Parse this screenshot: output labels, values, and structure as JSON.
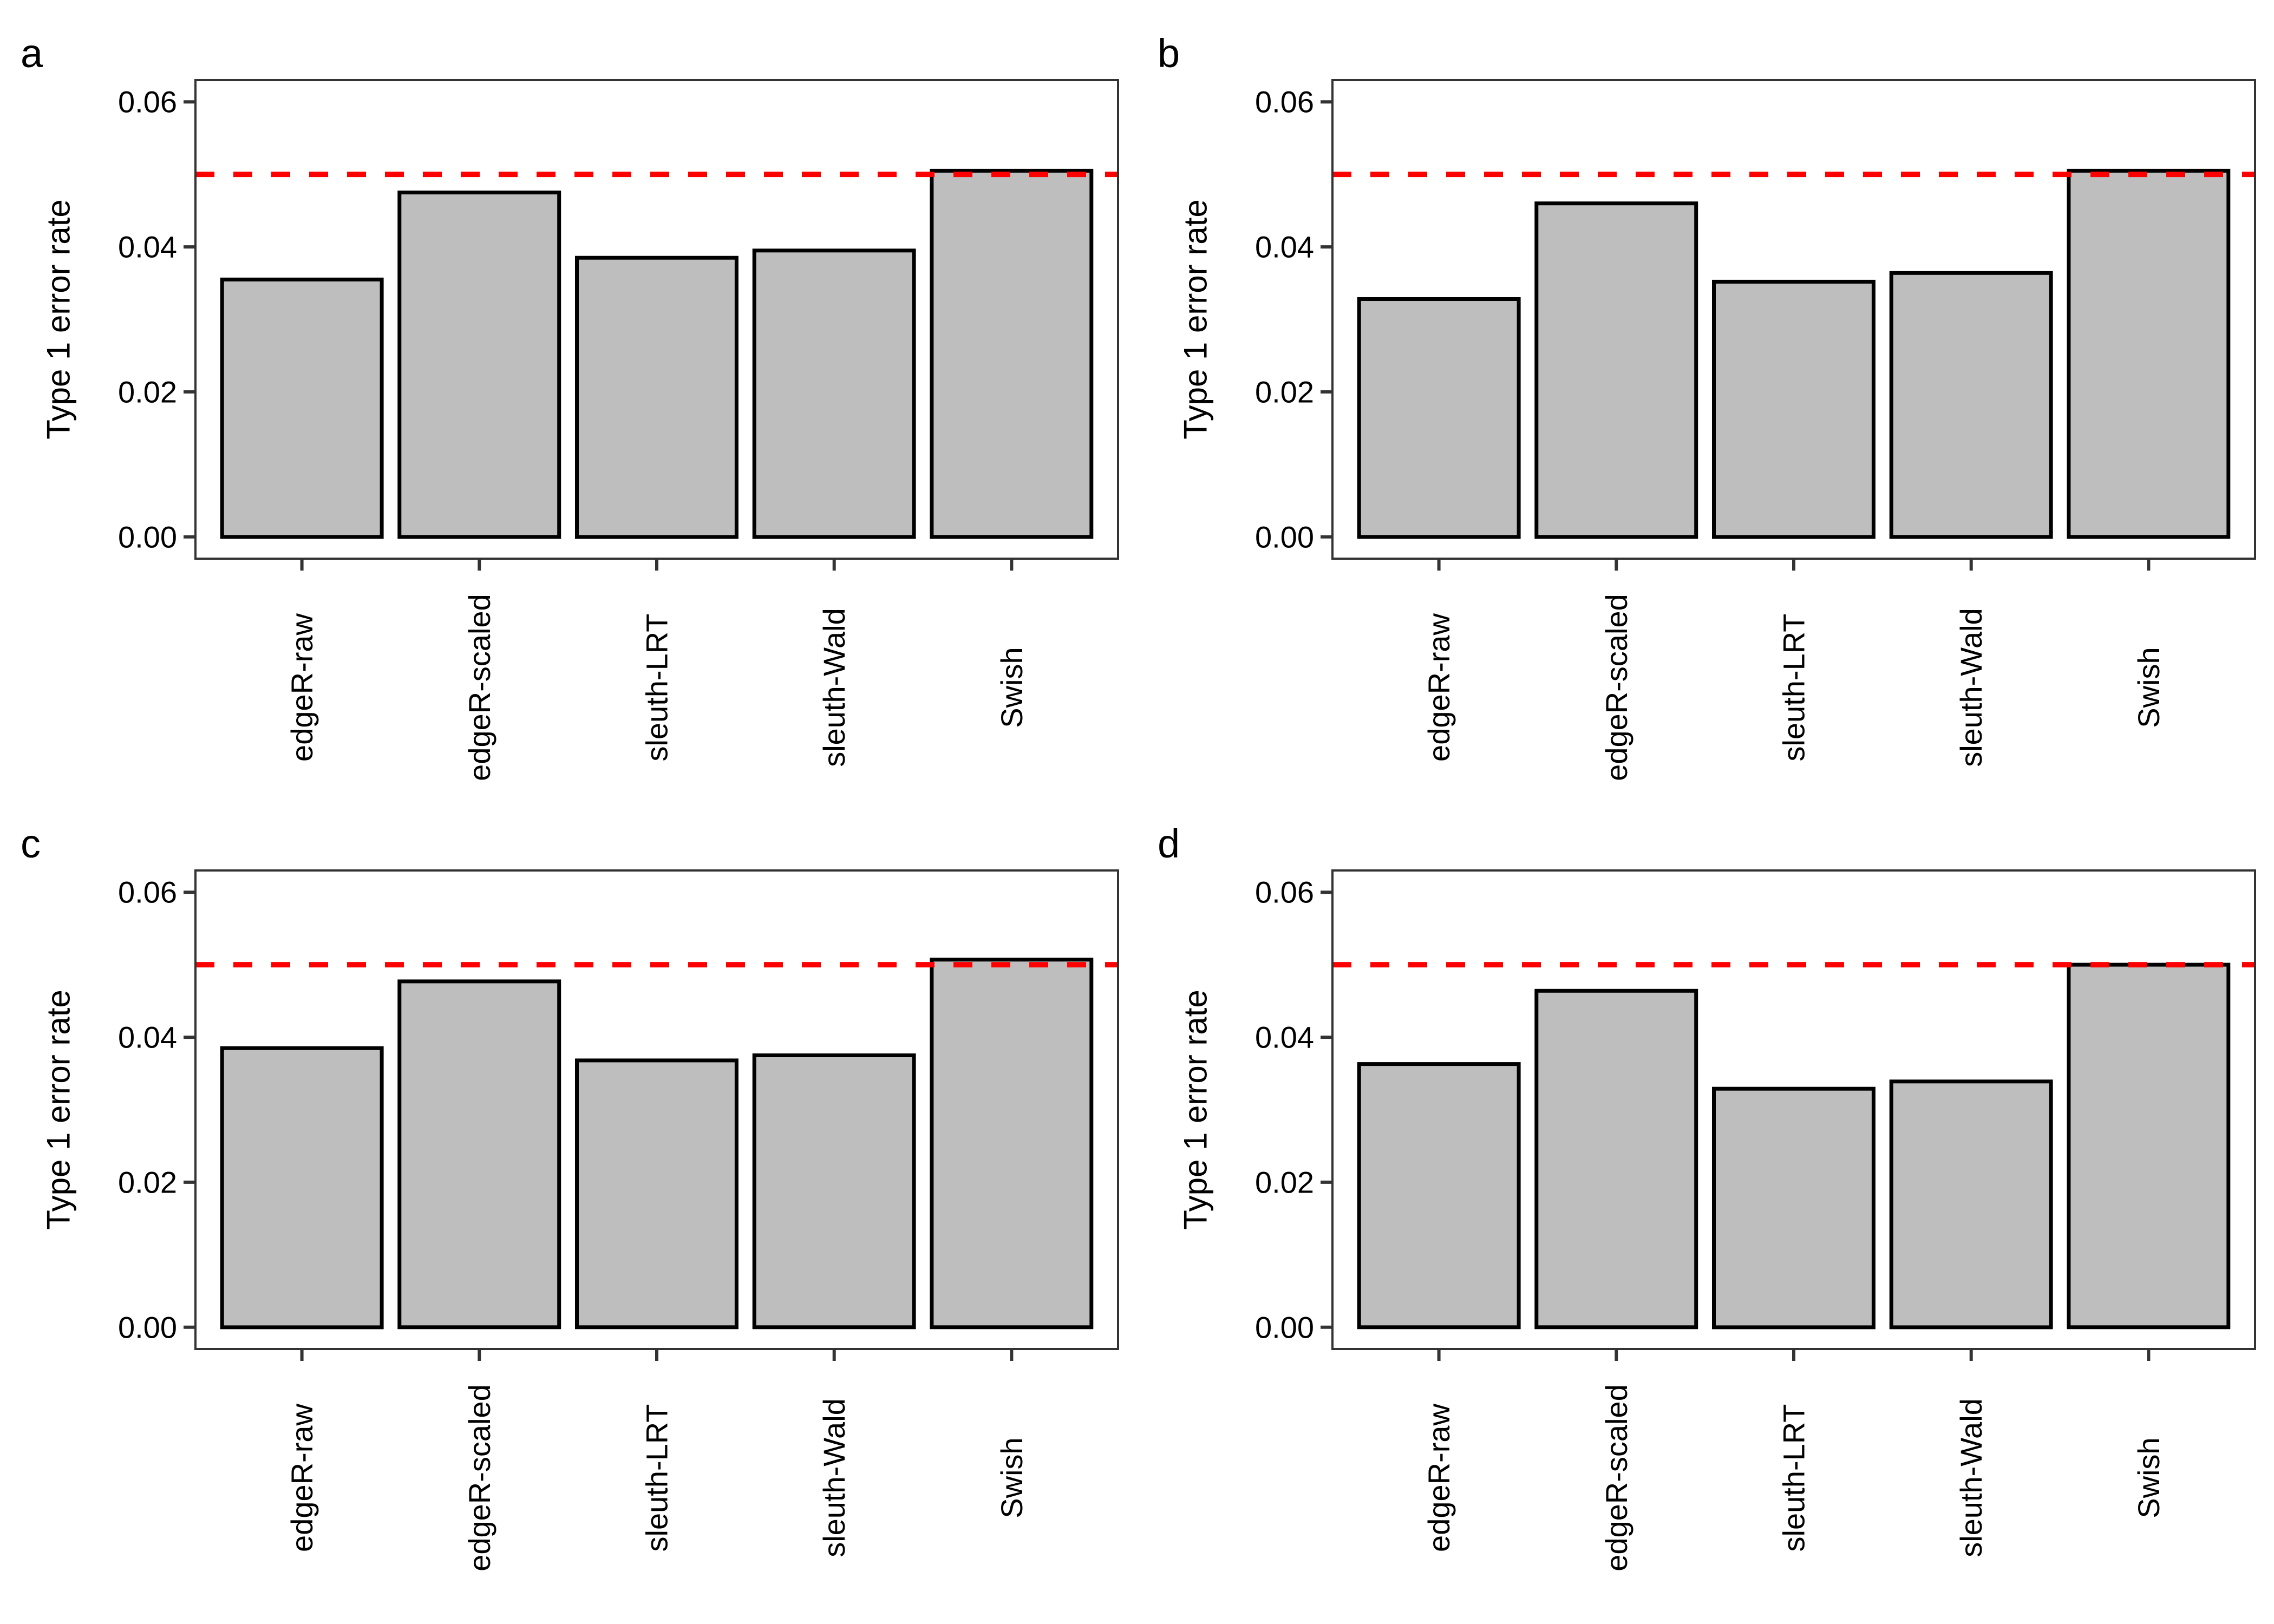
{
  "figure": {
    "background": "#FFFFFF",
    "panel_letters": [
      "a",
      "b",
      "c",
      "d"
    ]
  },
  "style": {
    "bar_fill": "#BEBEBE",
    "bar_stroke": "#000000",
    "threshold_color": "#FF0000",
    "axis_color": "#333333",
    "text_color": "#000000"
  },
  "chart_data": [
    {
      "type": "bar",
      "panel_label": "a",
      "categories": [
        "edgeR-raw",
        "edgeR-scaled",
        "sleuth-LRT",
        "sleuth-Wald",
        "Swish"
      ],
      "values": [
        0.0355,
        0.0475,
        0.0385,
        0.0395,
        0.0505
      ],
      "title": "",
      "xlabel": "",
      "ylabel": "Type 1 error rate",
      "ylim": [
        0,
        0.06
      ],
      "y_ticks": [
        0,
        0.02,
        0.04,
        0.06
      ],
      "y_tick_labels": [
        "0.00",
        "0.02",
        "0.04",
        "0.06"
      ],
      "threshold": 0.05,
      "threshold_style": "dashed",
      "x_label_angle": 90,
      "grid": false,
      "legend": false
    },
    {
      "type": "bar",
      "panel_label": "b",
      "categories": [
        "edgeR-raw",
        "edgeR-scaled",
        "sleuth-LRT",
        "sleuth-Wald",
        "Swish"
      ],
      "values": [
        0.0328,
        0.046,
        0.0352,
        0.0364,
        0.0505
      ],
      "title": "",
      "xlabel": "",
      "ylabel": "Type 1 error rate",
      "ylim": [
        0,
        0.06
      ],
      "y_ticks": [
        0,
        0.02,
        0.04,
        0.06
      ],
      "y_tick_labels": [
        "0.00",
        "0.02",
        "0.04",
        "0.06"
      ],
      "threshold": 0.05,
      "threshold_style": "dashed",
      "x_label_angle": 90,
      "grid": false,
      "legend": false
    },
    {
      "type": "bar",
      "panel_label": "c",
      "categories": [
        "edgeR-raw",
        "edgeR-scaled",
        "sleuth-LRT",
        "sleuth-Wald",
        "Swish"
      ],
      "values": [
        0.0385,
        0.0477,
        0.0368,
        0.0375,
        0.0507
      ],
      "title": "",
      "xlabel": "",
      "ylabel": "Type 1 error rate",
      "ylim": [
        0,
        0.06
      ],
      "y_ticks": [
        0,
        0.02,
        0.04,
        0.06
      ],
      "y_tick_labels": [
        "0.00",
        "0.02",
        "0.04",
        "0.06"
      ],
      "threshold": 0.05,
      "threshold_style": "dashed",
      "x_label_angle": 90,
      "grid": false,
      "legend": false
    },
    {
      "type": "bar",
      "panel_label": "d",
      "categories": [
        "edgeR-raw",
        "edgeR-scaled",
        "sleuth-LRT",
        "sleuth-Wald",
        "Swish"
      ],
      "values": [
        0.0363,
        0.0464,
        0.0329,
        0.0339,
        0.05
      ],
      "title": "",
      "xlabel": "",
      "ylabel": "Type 1 error rate",
      "ylim": [
        0,
        0.06
      ],
      "y_ticks": [
        0,
        0.02,
        0.04,
        0.06
      ],
      "y_tick_labels": [
        "0.00",
        "0.02",
        "0.04",
        "0.06"
      ],
      "threshold": 0.05,
      "threshold_style": "dashed",
      "x_label_angle": 90,
      "grid": false,
      "legend": false
    }
  ]
}
